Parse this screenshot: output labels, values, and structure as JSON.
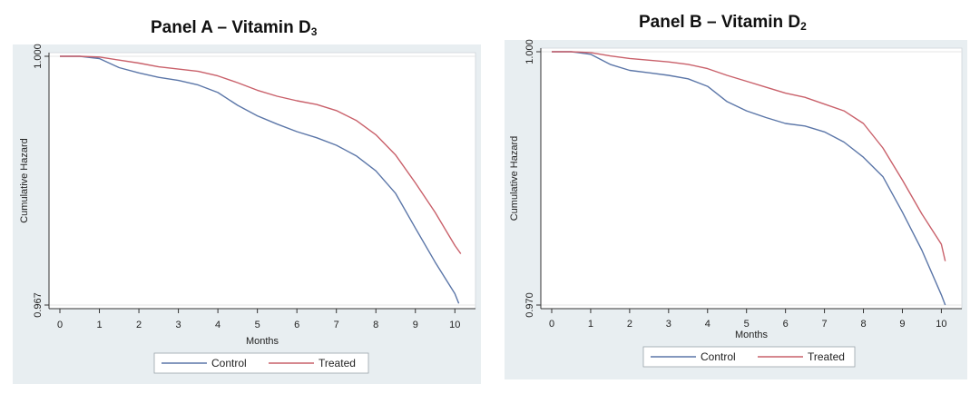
{
  "colors": {
    "control": "#5b76a8",
    "treated": "#c9606a",
    "panel_bg": "#e8eef1",
    "plot_bg": "#ffffff",
    "axis": "#333333"
  },
  "panels": [
    {
      "title_main": "Panel A – Vitamin D",
      "title_sub": "3",
      "ylabel": "Cumulative Hazard",
      "xlabel": "Months",
      "legend": [
        "Control",
        "Treated"
      ]
    },
    {
      "title_main": "Panel B – Vitamin D",
      "title_sub": "2",
      "ylabel": "Cumulative Hazard",
      "xlabel": "Months",
      "legend": [
        "Control",
        "Treated"
      ]
    }
  ],
  "chart_data": [
    {
      "type": "line",
      "title": "Panel A – Vitamin D3",
      "xlabel": "Months",
      "ylabel": "Cumulative Hazard",
      "xlim": [
        0,
        10
      ],
      "ylim": [
        0.967,
        1.0
      ],
      "xticks": [
        0,
        1,
        2,
        3,
        4,
        5,
        6,
        7,
        8,
        9,
        10
      ],
      "yticks": [
        0.967,
        1.0
      ],
      "ytick_labels": [
        "0.967",
        "1.000"
      ],
      "legend_position": "bottom",
      "series": [
        {
          "name": "Control",
          "x": [
            0,
            0.5,
            1,
            1.5,
            2,
            2.5,
            3,
            3.5,
            4,
            4.5,
            5,
            5.5,
            6,
            6.5,
            7,
            7.5,
            8,
            8.5,
            9,
            9.5,
            10,
            10.1
          ],
          "y": [
            1.0,
            1.0,
            0.9997,
            0.9985,
            0.9978,
            0.9972,
            0.9968,
            0.9962,
            0.9952,
            0.9935,
            0.9921,
            0.991,
            0.99,
            0.9892,
            0.9882,
            0.9868,
            0.9848,
            0.9818,
            0.9772,
            0.9727,
            0.9685,
            0.9672
          ]
        },
        {
          "name": "Treated",
          "x": [
            0,
            0.5,
            1,
            1.5,
            2,
            2.5,
            3,
            3.5,
            4,
            4.5,
            5,
            5.5,
            6,
            6.5,
            7,
            7.5,
            8,
            8.5,
            9,
            9.5,
            10,
            10.15
          ],
          "y": [
            1.0,
            1.0,
            0.9999,
            0.9995,
            0.9991,
            0.9986,
            0.9983,
            0.998,
            0.9974,
            0.9965,
            0.9955,
            0.9947,
            0.9941,
            0.9936,
            0.9928,
            0.9915,
            0.9896,
            0.9869,
            0.9832,
            0.9793,
            0.9749,
            0.9738
          ]
        }
      ]
    },
    {
      "type": "line",
      "title": "Panel B – Vitamin D2",
      "xlabel": "Months",
      "ylabel": "Cumulative Hazard",
      "xlim": [
        0,
        10
      ],
      "ylim": [
        0.97,
        1.0
      ],
      "xticks": [
        0,
        1,
        2,
        3,
        4,
        5,
        6,
        7,
        8,
        9,
        10
      ],
      "yticks": [
        0.97,
        1.0
      ],
      "ytick_labels": [
        "0.970",
        "1.000"
      ],
      "legend_position": "bottom",
      "series": [
        {
          "name": "Control",
          "x": [
            0,
            0.5,
            1,
            1.5,
            2,
            2.5,
            3,
            3.5,
            4,
            4.5,
            5,
            5.5,
            6,
            6.5,
            7,
            7.5,
            8,
            8.5,
            9,
            9.5,
            10,
            10.1
          ],
          "y": [
            1.0,
            1.0,
            0.9997,
            0.9985,
            0.9978,
            0.9975,
            0.9972,
            0.9968,
            0.9959,
            0.9941,
            0.993,
            0.9922,
            0.9915,
            0.9912,
            0.9905,
            0.9893,
            0.9875,
            0.9852,
            0.981,
            0.9765,
            0.9712,
            0.97
          ]
        },
        {
          "name": "Treated",
          "x": [
            0,
            0.5,
            1,
            1.5,
            2,
            2.5,
            3,
            3.5,
            4,
            4.5,
            5,
            5.5,
            6,
            6.5,
            7,
            7.5,
            8,
            8.5,
            9,
            9.5,
            10,
            10.1
          ],
          "y": [
            1.0,
            1.0,
            0.9999,
            0.9995,
            0.9992,
            0.999,
            0.9988,
            0.9985,
            0.998,
            0.9972,
            0.9965,
            0.9958,
            0.9951,
            0.9946,
            0.9938,
            0.993,
            0.9915,
            0.9886,
            0.9848,
            0.9808,
            0.9772,
            0.9752
          ]
        }
      ]
    }
  ]
}
